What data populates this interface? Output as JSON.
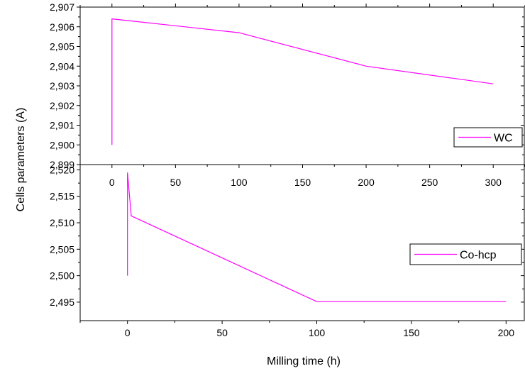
{
  "chart_data": [
    {
      "type": "line",
      "panel": "top",
      "ylabel": "Cells parameters (A)",
      "xlim": [
        -25,
        325
      ],
      "ylim": [
        2.899,
        2.907
      ],
      "x_ticks": [
        0,
        50,
        100,
        150,
        200,
        250,
        300
      ],
      "x_tick_labels": [
        "0",
        "50",
        "100",
        "150",
        "200",
        "250",
        "300"
      ],
      "y_ticks": [
        2.899,
        2.9,
        2.901,
        2.902,
        2.903,
        2.904,
        2.905,
        2.906,
        2.907
      ],
      "y_tick_labels": [
        "2,899",
        "2,900",
        "2,901",
        "2,902",
        "2,903",
        "2,904",
        "2,905",
        "2,906",
        "2,907"
      ],
      "legend_position": "right",
      "series": [
        {
          "name": "WC",
          "color": "#ff00ff",
          "x": [
            0,
            0,
            100,
            200,
            300
          ],
          "y": [
            2.9,
            2.9064,
            2.9057,
            2.904,
            2.9031
          ]
        }
      ]
    },
    {
      "type": "line",
      "panel": "bottom",
      "xlabel": "Milling time (h)",
      "ylabel": "Cells parameters (A)",
      "xlim": [
        -25,
        210
      ],
      "ylim": [
        2.4915,
        2.521
      ],
      "x_ticks": [
        0,
        50,
        100,
        150,
        200
      ],
      "x_tick_labels": [
        "0",
        "50",
        "100",
        "150",
        "200"
      ],
      "y_ticks": [
        2.495,
        2.5,
        2.505,
        2.51,
        2.515,
        2.52
      ],
      "y_tick_labels": [
        "2,495",
        "2,500",
        "2,505",
        "2,510",
        "2,515",
        "2,520"
      ],
      "legend_position": "right",
      "series": [
        {
          "name": "Co-hcp",
          "color": "#ff00ff",
          "x": [
            0,
            0,
            2,
            100,
            200
          ],
          "y": [
            2.5,
            2.5195,
            2.5113,
            2.4951,
            2.4951
          ]
        }
      ]
    }
  ]
}
